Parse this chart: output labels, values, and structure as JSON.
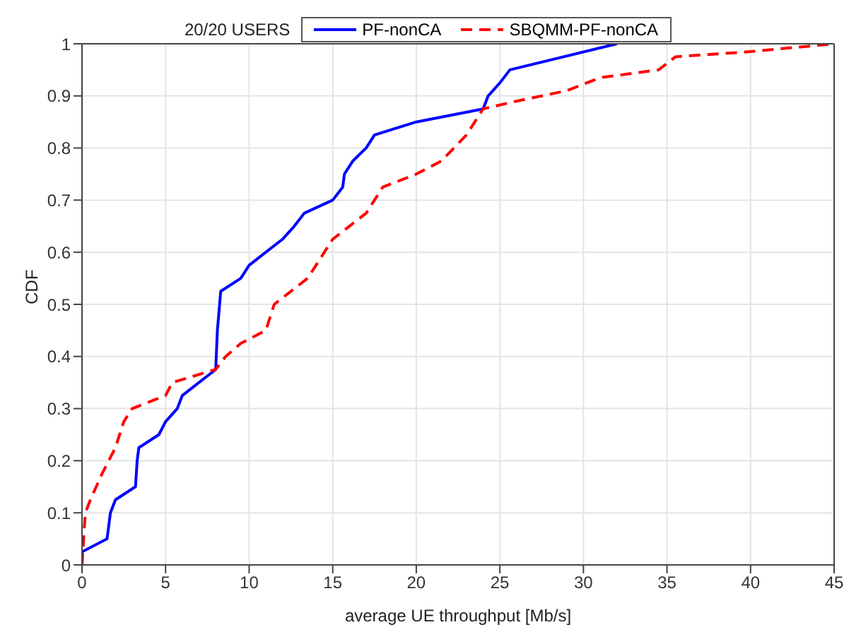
{
  "chart_data": {
    "type": "line",
    "title": "20/20 USERS",
    "xlabel": "average UE throughput [Mb/s]",
    "ylabel": "CDF",
    "xlim": [
      0,
      45
    ],
    "xticks": [
      0,
      5,
      10,
      15,
      20,
      25,
      30,
      35,
      40,
      45
    ],
    "ylim": [
      0,
      1
    ],
    "yticks": [
      0,
      0.1,
      0.2,
      0.3,
      0.4,
      0.5,
      0.6,
      0.7,
      0.8,
      0.9,
      1
    ],
    "grid": true,
    "legend": "top",
    "marker": "none",
    "series": [
      {
        "name": "PF-nonCA",
        "color": "#0000ff",
        "line_style": "solid",
        "x": [
          0,
          0,
          1.5,
          1.7,
          2,
          3.2,
          3.3,
          3.4,
          4.6,
          5,
          5.7,
          6,
          8,
          8.1,
          8.3,
          9.5,
          10,
          11,
          12,
          12.7,
          13.3,
          15,
          15.6,
          15.7,
          16.2,
          17,
          17.5,
          20,
          24,
          24.3,
          25,
          25.6,
          32
        ],
        "values": [
          0,
          0.025,
          0.05,
          0.1,
          0.125,
          0.15,
          0.2,
          0.225,
          0.25,
          0.275,
          0.3,
          0.325,
          0.375,
          0.45,
          0.525,
          0.55,
          0.575,
          0.6,
          0.625,
          0.65,
          0.675,
          0.7,
          0.725,
          0.75,
          0.775,
          0.8,
          0.825,
          0.85,
          0.875,
          0.9,
          0.925,
          0.95,
          1
        ]
      },
      {
        "name": "SBQMM-PF-nonCA",
        "color": "#ff0000",
        "line_style": "dashed",
        "x": [
          0,
          0.2,
          0.5,
          1.2,
          2,
          2.5,
          3,
          5,
          5.4,
          8,
          8.6,
          9.5,
          11,
          11.5,
          12.5,
          13.5,
          15,
          16,
          17,
          18,
          20,
          21.5,
          23,
          24,
          26,
          29,
          31,
          34.5,
          35.5,
          40,
          45
        ],
        "values": [
          0,
          0.1,
          0.125,
          0.175,
          0.225,
          0.275,
          0.3,
          0.325,
          0.35,
          0.375,
          0.4,
          0.425,
          0.45,
          0.5,
          0.525,
          0.55,
          0.625,
          0.65,
          0.675,
          0.725,
          0.75,
          0.775,
          0.825,
          0.875,
          0.89,
          0.91,
          0.935,
          0.95,
          0.975,
          0.985,
          1
        ]
      }
    ]
  }
}
